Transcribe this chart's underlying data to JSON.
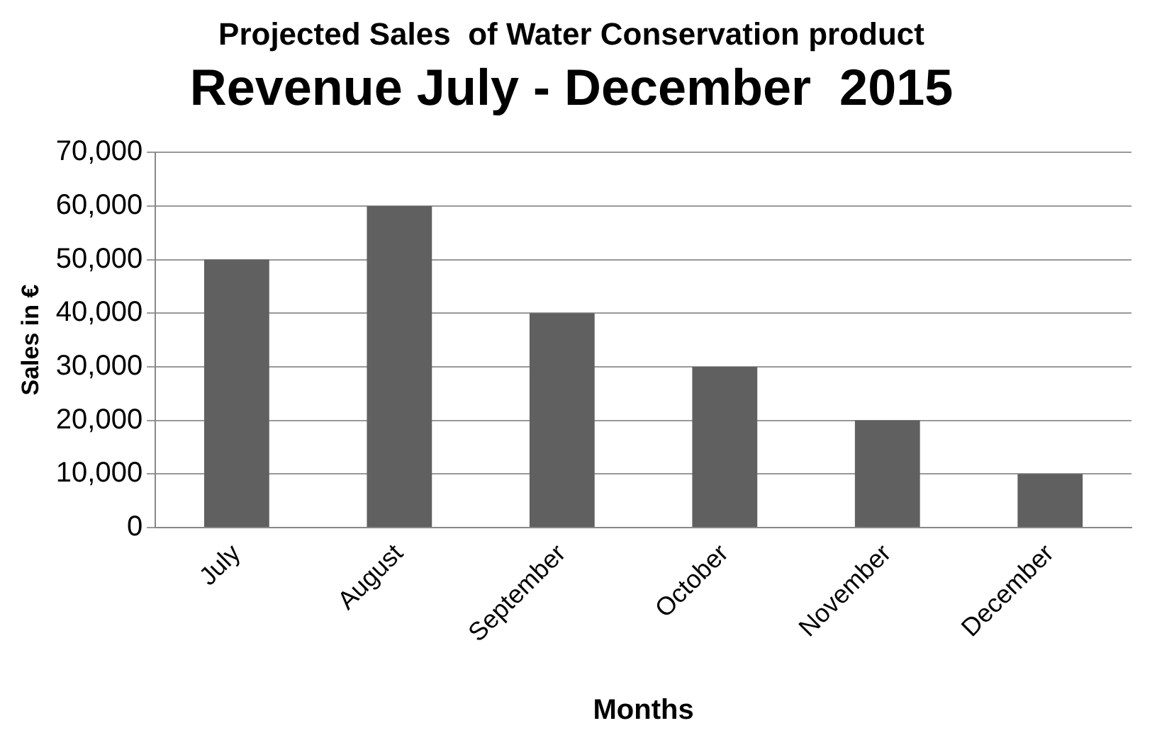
{
  "chart_data": {
    "type": "bar",
    "title": "Projected Sales  of Water Conservation product",
    "subtitle": "Revenue July - December  2015",
    "xlabel": "Months",
    "ylabel": "Sales in €",
    "categories": [
      "July",
      "August",
      "September",
      "October",
      "November",
      "December"
    ],
    "values": [
      50000,
      60000,
      40000,
      30000,
      20000,
      10000
    ],
    "color": "#606060",
    "ylim": [
      0,
      70000
    ],
    "yticks": [
      0,
      {
        "value": 10000,
        "label": "10,000"
      },
      {
        "value": 20000,
        "label": "20,000"
      },
      {
        "value": 30000,
        "label": "30,000"
      },
      {
        "value": 40000,
        "label": "40,000"
      },
      {
        "value": 50000,
        "label": "50,000"
      },
      {
        "value": 60000,
        "label": "60,000"
      },
      {
        "value": 70000,
        "label": "70,000"
      }
    ],
    "grid": "y",
    "legend": false
  }
}
